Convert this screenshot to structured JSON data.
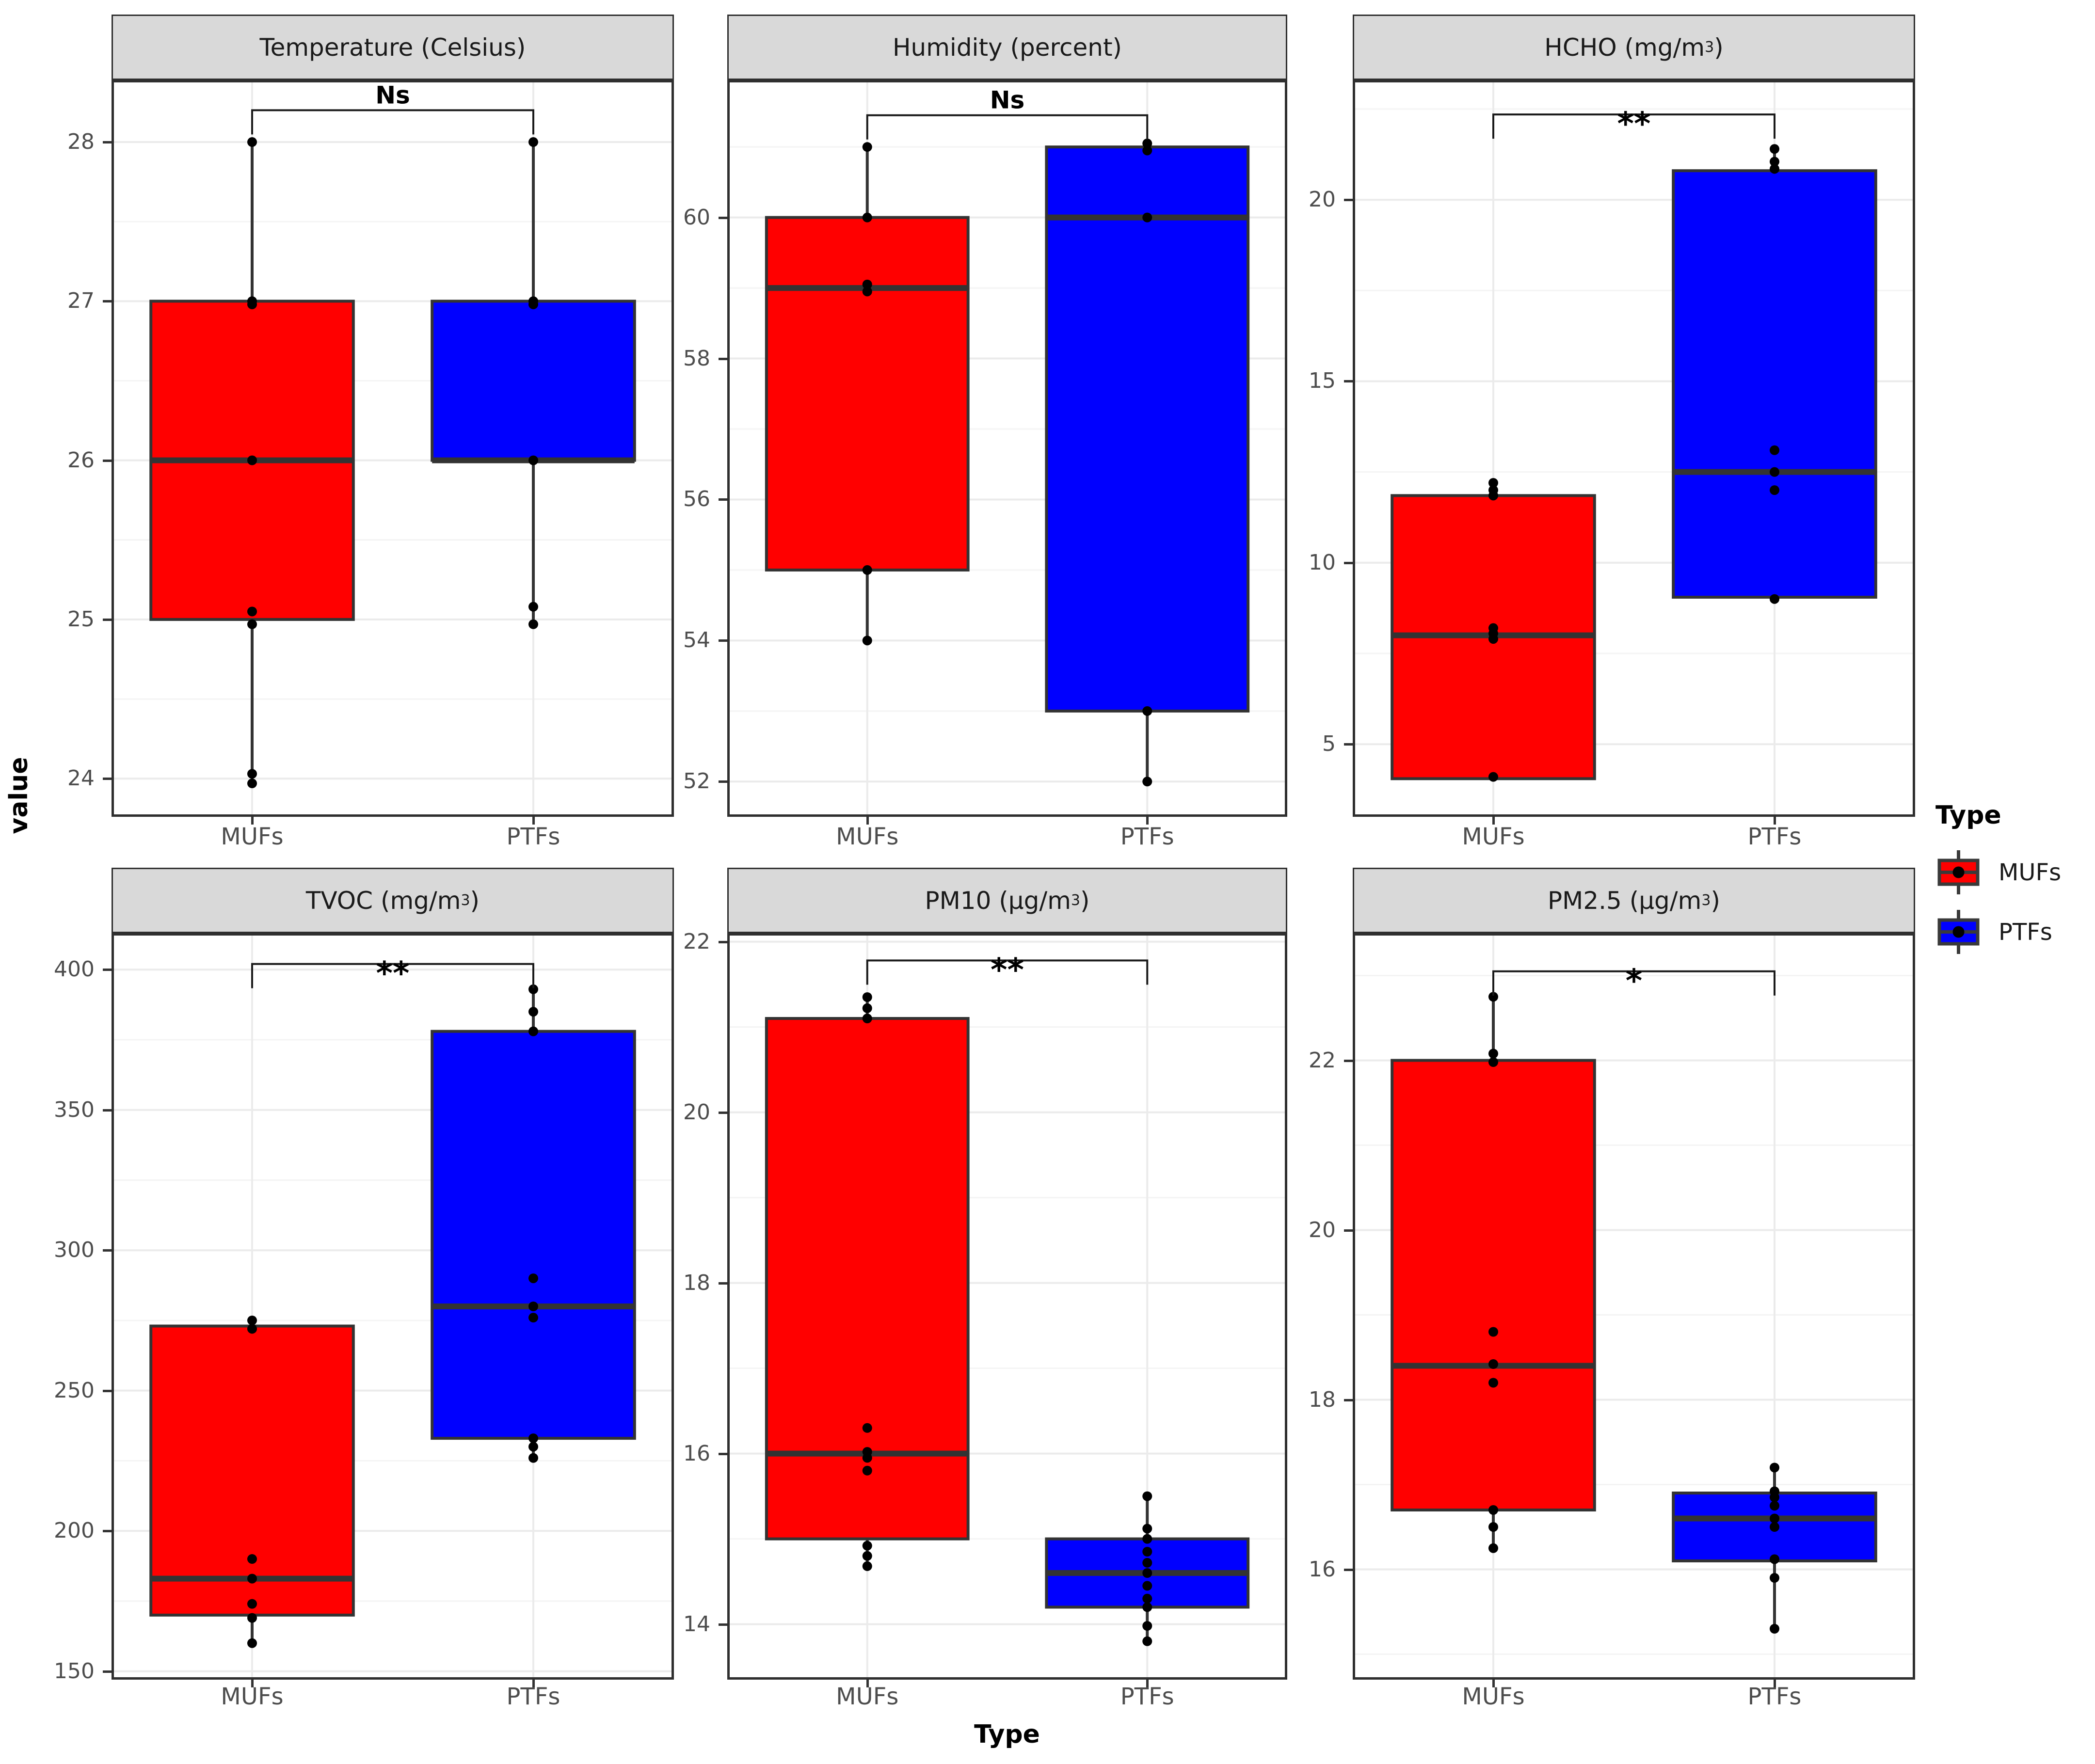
{
  "figure": {
    "y_axis_title": "value",
    "x_axis_title": "Type",
    "background": "#FFFFFF"
  },
  "legend": {
    "title": "Type",
    "entries": [
      {
        "label": "MUFs",
        "color": "#FF0000"
      },
      {
        "label": "PTFs",
        "color": "#0000FF"
      }
    ]
  },
  "colors": {
    "muf_red": "#FF0000",
    "ptf_blue": "#0000FF",
    "box_stroke": "#333333",
    "strip_fill": "#D9D9D9",
    "grid_major": "#EBEBEB",
    "grid_minor": "#F4F4F4",
    "tick_text": "#4D4D4D",
    "point": "#000000"
  },
  "chart_data": {
    "type": "boxplot",
    "facet_grid": [
      2,
      3
    ],
    "categories": [
      "MUFs",
      "PTFs"
    ],
    "facets": [
      {
        "title": {
          "pre": "Temperature (Celsius)",
          "sup": "",
          "post": ""
        },
        "significance": "Ns",
        "ylim": [
          23.76,
          28.39
        ],
        "ytick_values": [
          24,
          25,
          26,
          27,
          28
        ],
        "yticks": [
          "24",
          "25",
          "26",
          "27",
          "28"
        ],
        "bracket_y": 28.2,
        "series": [
          {
            "name": "MUFs",
            "color": "#FF0000",
            "whisker_low": 24,
            "q1": 25,
            "median": 26,
            "q3": 27,
            "whisker_high": 28,
            "points": [
              28,
              27,
              26.98,
              26,
              25.05,
              24.97,
              24.03,
              23.97
            ]
          },
          {
            "name": "PTFs",
            "color": "#0000FF",
            "whisker_low": 25,
            "q1": 26,
            "median": 26,
            "q3": 27,
            "whisker_high": 28,
            "points": [
              28,
              27,
              26.98,
              26,
              25.08,
              24.97
            ]
          }
        ]
      },
      {
        "title": {
          "pre": "Humidity (percent)",
          "sup": "",
          "post": ""
        },
        "significance": "Ns",
        "ylim": [
          51.5,
          61.95
        ],
        "ytick_values": [
          52,
          54,
          56,
          58,
          60
        ],
        "yticks": [
          "52",
          "54",
          "56",
          "58",
          "60"
        ],
        "bracket_y": 61.45,
        "series": [
          {
            "name": "MUFs",
            "color": "#FF0000",
            "whisker_low": 54,
            "q1": 55,
            "median": 59,
            "q3": 60,
            "whisker_high": 61,
            "points": [
              61,
              60,
              59.05,
              58.95,
              55,
              54
            ]
          },
          {
            "name": "PTFs",
            "color": "#0000FF",
            "whisker_low": 52,
            "q1": 53,
            "median": 60,
            "q3": 61,
            "whisker_high": 61,
            "points": [
              61.05,
              60.95,
              60,
              53,
              52
            ]
          }
        ]
      },
      {
        "title": {
          "pre": "HCHO (mg/m",
          "sup": "3",
          "post": ")"
        },
        "significance": "**",
        "ylim": [
          3.0,
          23.3
        ],
        "ytick_values": [
          5,
          10,
          15,
          20
        ],
        "yticks": [
          "5",
          "10",
          "15",
          "20"
        ],
        "bracket_y": 22.35,
        "series": [
          {
            "name": "MUFs",
            "color": "#FF0000",
            "whisker_low": 4,
            "q1": 4.05,
            "median": 8,
            "q3": 11.85,
            "whisker_high": 12.2,
            "points": [
              12.2,
              12.0,
              11.85,
              8.2,
              8.05,
              7.9,
              4.1
            ]
          },
          {
            "name": "PTFs",
            "color": "#0000FF",
            "whisker_low": 9,
            "q1": 9.05,
            "median": 12.5,
            "q3": 20.8,
            "whisker_high": 21.4,
            "points": [
              21.4,
              21.05,
              20.85,
              13.1,
              12.5,
              12.0,
              9.0
            ]
          }
        ]
      },
      {
        "title": {
          "pre": "TVOC (mg/m",
          "sup": "3",
          "post": ")"
        },
        "significance": "**",
        "ylim": [
          147,
          413
        ],
        "ytick_values": [
          150,
          200,
          250,
          300,
          350,
          400
        ],
        "yticks": [
          "150",
          "200",
          "250",
          "300",
          "350",
          "400"
        ],
        "bracket_y": 402,
        "series": [
          {
            "name": "MUFs",
            "color": "#FF0000",
            "whisker_low": 160,
            "q1": 170,
            "median": 183,
            "q3": 273,
            "whisker_high": 275,
            "points": [
              275,
              272,
              190,
              183,
              174,
              169,
              160
            ]
          },
          {
            "name": "PTFs",
            "color": "#0000FF",
            "whisker_low": 226,
            "q1": 233,
            "median": 280,
            "q3": 378,
            "whisker_high": 393,
            "points": [
              393,
              385,
              378,
              290,
              280,
              276,
              233,
              230,
              226
            ]
          }
        ]
      },
      {
        "title": {
          "pre": "PM10 (μg/m",
          "sup": "3",
          "post": ")"
        },
        "significance": "**",
        "ylim": [
          13.35,
          22.1
        ],
        "ytick_values": [
          14,
          16,
          18,
          20,
          22
        ],
        "yticks": [
          "14",
          "16",
          "18",
          "20",
          "22"
        ],
        "bracket_y": 21.78,
        "series": [
          {
            "name": "MUFs",
            "color": "#FF0000",
            "whisker_low": 14.7,
            "q1": 15,
            "median": 16,
            "q3": 21.1,
            "whisker_high": 21.35,
            "points": [
              21.35,
              21.22,
              21.1,
              16.3,
              16.02,
              15.95,
              15.8,
              14.92,
              14.8,
              14.68
            ]
          },
          {
            "name": "PTFs",
            "color": "#0000FF",
            "whisker_low": 13.8,
            "q1": 14.2,
            "median": 14.6,
            "q3": 15.0,
            "whisker_high": 15.5,
            "points": [
              15.5,
              15.12,
              15.0,
              14.85,
              14.72,
              14.6,
              14.45,
              14.3,
              14.2,
              13.98,
              13.8
            ]
          }
        ]
      },
      {
        "title": {
          "pre": "PM2.5 (μg/m",
          "sup": "3",
          "post": ")"
        },
        "significance": "*",
        "ylim": [
          14.7,
          23.5
        ],
        "ytick_values": [
          16,
          18,
          20,
          22
        ],
        "yticks": [
          "16",
          "18",
          "20",
          "22"
        ],
        "bracket_y": 23.05,
        "series": [
          {
            "name": "MUFs",
            "color": "#FF0000",
            "whisker_low": 16.25,
            "q1": 16.7,
            "median": 18.4,
            "q3": 22.0,
            "whisker_high": 22.75,
            "points": [
              22.75,
              22.08,
              21.98,
              18.8,
              18.42,
              18.2,
              16.7,
              16.5,
              16.25
            ]
          },
          {
            "name": "PTFs",
            "color": "#0000FF",
            "whisker_low": 15.3,
            "q1": 16.1,
            "median": 16.6,
            "q3": 16.9,
            "whisker_high": 17.2,
            "points": [
              17.2,
              16.92,
              16.85,
              16.75,
              16.6,
              16.5,
              16.12,
              15.9,
              15.3
            ]
          }
        ]
      }
    ]
  }
}
